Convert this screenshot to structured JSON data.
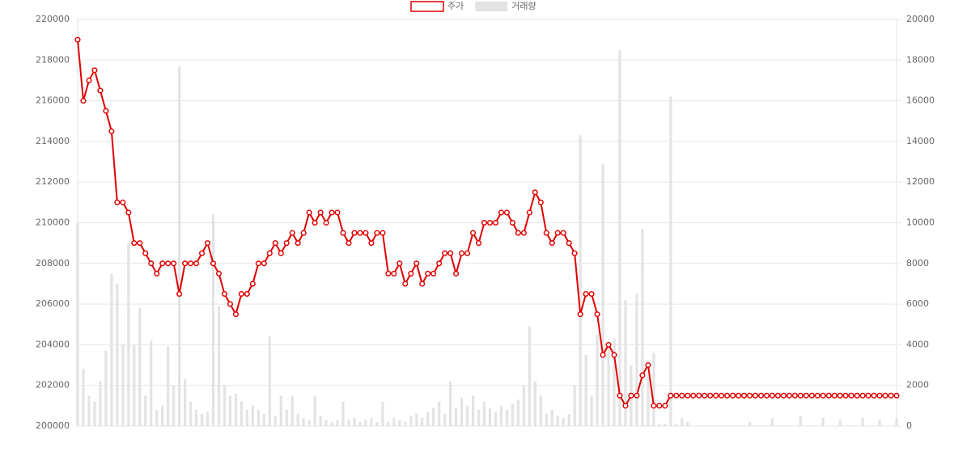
{
  "chart_data": {
    "type": "combo",
    "legend": "top",
    "grid": true,
    "ylim": [
      200000,
      220000
    ],
    "yticks": [
      200000,
      202000,
      204000,
      206000,
      208000,
      210000,
      212000,
      214000,
      216000,
      218000,
      220000
    ],
    "y2lim": [
      0,
      20000
    ],
    "y2ticks": [
      0,
      2000,
      4000,
      6000,
      8000,
      10000,
      12000,
      14000,
      16000,
      18000,
      20000
    ],
    "series": [
      {
        "name": "주가",
        "type": "line",
        "color": "#e00000",
        "values": [
          219000,
          216000,
          217000,
          217500,
          216500,
          215500,
          214500,
          211000,
          211000,
          210500,
          209000,
          209000,
          208500,
          208000,
          207500,
          208000,
          208000,
          208000,
          206500,
          208000,
          208000,
          208000,
          208500,
          209000,
          208000,
          207500,
          206500,
          206000,
          205500,
          206500,
          206500,
          207000,
          208000,
          208000,
          208500,
          209000,
          208500,
          209000,
          209500,
          209000,
          209500,
          210500,
          210000,
          210500,
          210000,
          210500,
          210500,
          209500,
          209000,
          209500,
          209500,
          209500,
          209000,
          209500,
          209500,
          207500,
          207500,
          208000,
          207000,
          207500,
          208000,
          207000,
          207500,
          207500,
          208000,
          208500,
          208500,
          207500,
          208500,
          208500,
          209500,
          209000,
          210000,
          210000,
          210000,
          210500,
          210500,
          210000,
          209500,
          209500,
          210500,
          211500,
          211000,
          209500,
          209000,
          209500,
          209500,
          209000,
          208500,
          205500,
          206500,
          206500,
          205500,
          203500,
          204000,
          203500,
          201500,
          201000,
          201500,
          201500,
          202500,
          203000,
          201000,
          201000,
          201000,
          201500,
          201500,
          201500,
          201500,
          201500,
          201500,
          201500,
          201500,
          201500,
          201500,
          201500,
          201500,
          201500,
          201500,
          201500,
          201500,
          201500,
          201500,
          201500,
          201500,
          201500,
          201500,
          201500,
          201500,
          201500,
          201500,
          201500,
          201500,
          201500,
          201500,
          201500,
          201500,
          201500,
          201500,
          201500,
          201500,
          201500,
          201500,
          201500,
          201500,
          201500
        ]
      },
      {
        "name": "거래량",
        "type": "bar",
        "axis": "y2",
        "color": "#e3e3e3",
        "values": [
          10000,
          2800,
          1500,
          1200,
          2200,
          3700,
          7500,
          7000,
          4000,
          9000,
          4000,
          5800,
          1500,
          4200,
          800,
          1000,
          3900,
          2000,
          17700,
          2300,
          1200,
          800,
          600,
          700,
          10400,
          5900,
          2000,
          1500,
          1600,
          1200,
          800,
          1000,
          800,
          600,
          4400,
          500,
          1500,
          800,
          1500,
          600,
          400,
          300,
          1500,
          500,
          300,
          200,
          300,
          1200,
          300,
          400,
          200,
          300,
          400,
          200,
          1200,
          200,
          400,
          300,
          200,
          500,
          600,
          400,
          700,
          900,
          1200,
          600,
          2200,
          900,
          1400,
          1000,
          1500,
          800,
          1200,
          900,
          700,
          1000,
          800,
          1100,
          1300,
          2000,
          4900,
          2200,
          1500,
          600,
          800,
          500,
          400,
          600,
          2000,
          14300,
          3500,
          1500,
          4500,
          12900,
          3900,
          4300,
          18500,
          6200,
          3000,
          6500,
          9700,
          2500,
          3600,
          100,
          100,
          16200,
          100,
          400,
          200,
          0,
          0,
          0,
          0,
          0,
          0,
          0,
          0,
          0,
          0,
          200,
          0,
          0,
          0,
          400,
          0,
          0,
          0,
          0,
          500,
          0,
          0,
          0,
          400,
          0,
          0,
          300,
          0,
          0,
          0,
          400,
          0,
          0,
          300,
          0,
          0,
          400,
          0
        ]
      }
    ]
  }
}
